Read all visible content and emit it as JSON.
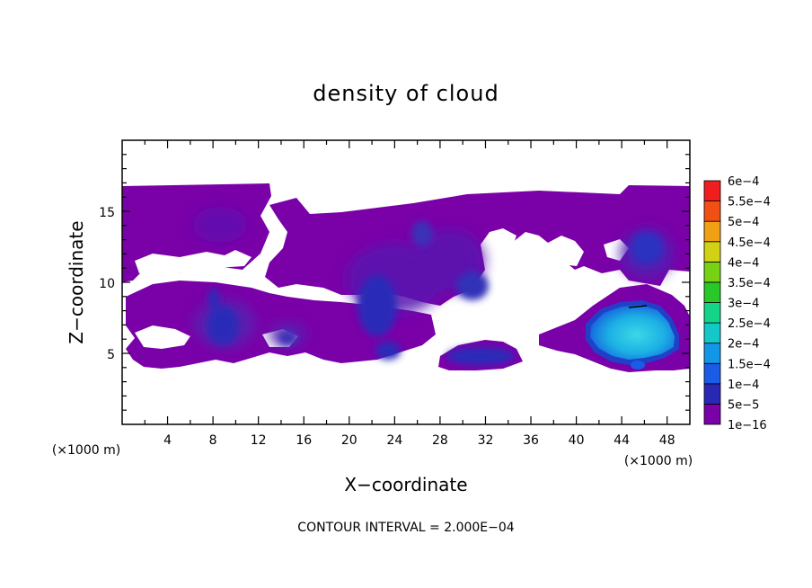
{
  "chart_data": {
    "type": "heatmap",
    "title": "density of cloud",
    "xlabel": "X−coordinate",
    "ylabel": "Z−coordinate",
    "x_unit": "(×1000 m)",
    "y_unit": "(×1000 m)",
    "xlim": [
      0,
      50
    ],
    "ylim": [
      0,
      20
    ],
    "x_ticks": [
      4,
      8,
      12,
      16,
      20,
      24,
      28,
      32,
      36,
      40,
      44,
      48
    ],
    "y_ticks": [
      5,
      10,
      15
    ],
    "contour_interval": "CONTOUR INTERVAL = 2.000E−04",
    "colorbar": {
      "levels": [
        "1e−16",
        "5e−5",
        "1e−4",
        "1.5e−4",
        "2e−4",
        "2.5e−4",
        "3e−4",
        "3.5e−4",
        "4e−4",
        "4.5e−4",
        "5e−4",
        "5.5e−4",
        "6e−4"
      ],
      "colors": [
        "#7a00a8",
        "#2828b4",
        "#1a5ce6",
        "#1496e6",
        "#14c8c8",
        "#14d48a",
        "#28c828",
        "#78d214",
        "#d2d214",
        "#f0a014",
        "#f05014",
        "#f01e1e",
        "#f08c8c"
      ]
    },
    "regions": [
      {
        "name": "upper-cloud-layer",
        "level": "1e−16",
        "x_range": [
          0,
          50
        ],
        "z_range": [
          8,
          16.7
        ]
      },
      {
        "name": "lower-cloud-layer",
        "level": "1e−16",
        "x_range": [
          0.5,
          48
        ],
        "z_range": [
          4,
          8.5
        ]
      },
      {
        "name": "core-x8",
        "level": "5e−5",
        "center": [
          8.5,
          6.8
        ]
      },
      {
        "name": "core-x22",
        "level": "5e−5",
        "center": [
          22,
          8.5
        ]
      },
      {
        "name": "core-x30",
        "level": "5e−5",
        "center": [
          29,
          10
        ]
      },
      {
        "name": "core-x32-low",
        "level": "5e−5",
        "center": [
          31.5,
          5
        ]
      },
      {
        "name": "core-x47",
        "level": "5e−5",
        "center": [
          46.5,
          12.2
        ]
      },
      {
        "name": "dense-cell-x44",
        "level": "1.5e−4",
        "center": [
          44.5,
          6.5
        ]
      }
    ]
  }
}
